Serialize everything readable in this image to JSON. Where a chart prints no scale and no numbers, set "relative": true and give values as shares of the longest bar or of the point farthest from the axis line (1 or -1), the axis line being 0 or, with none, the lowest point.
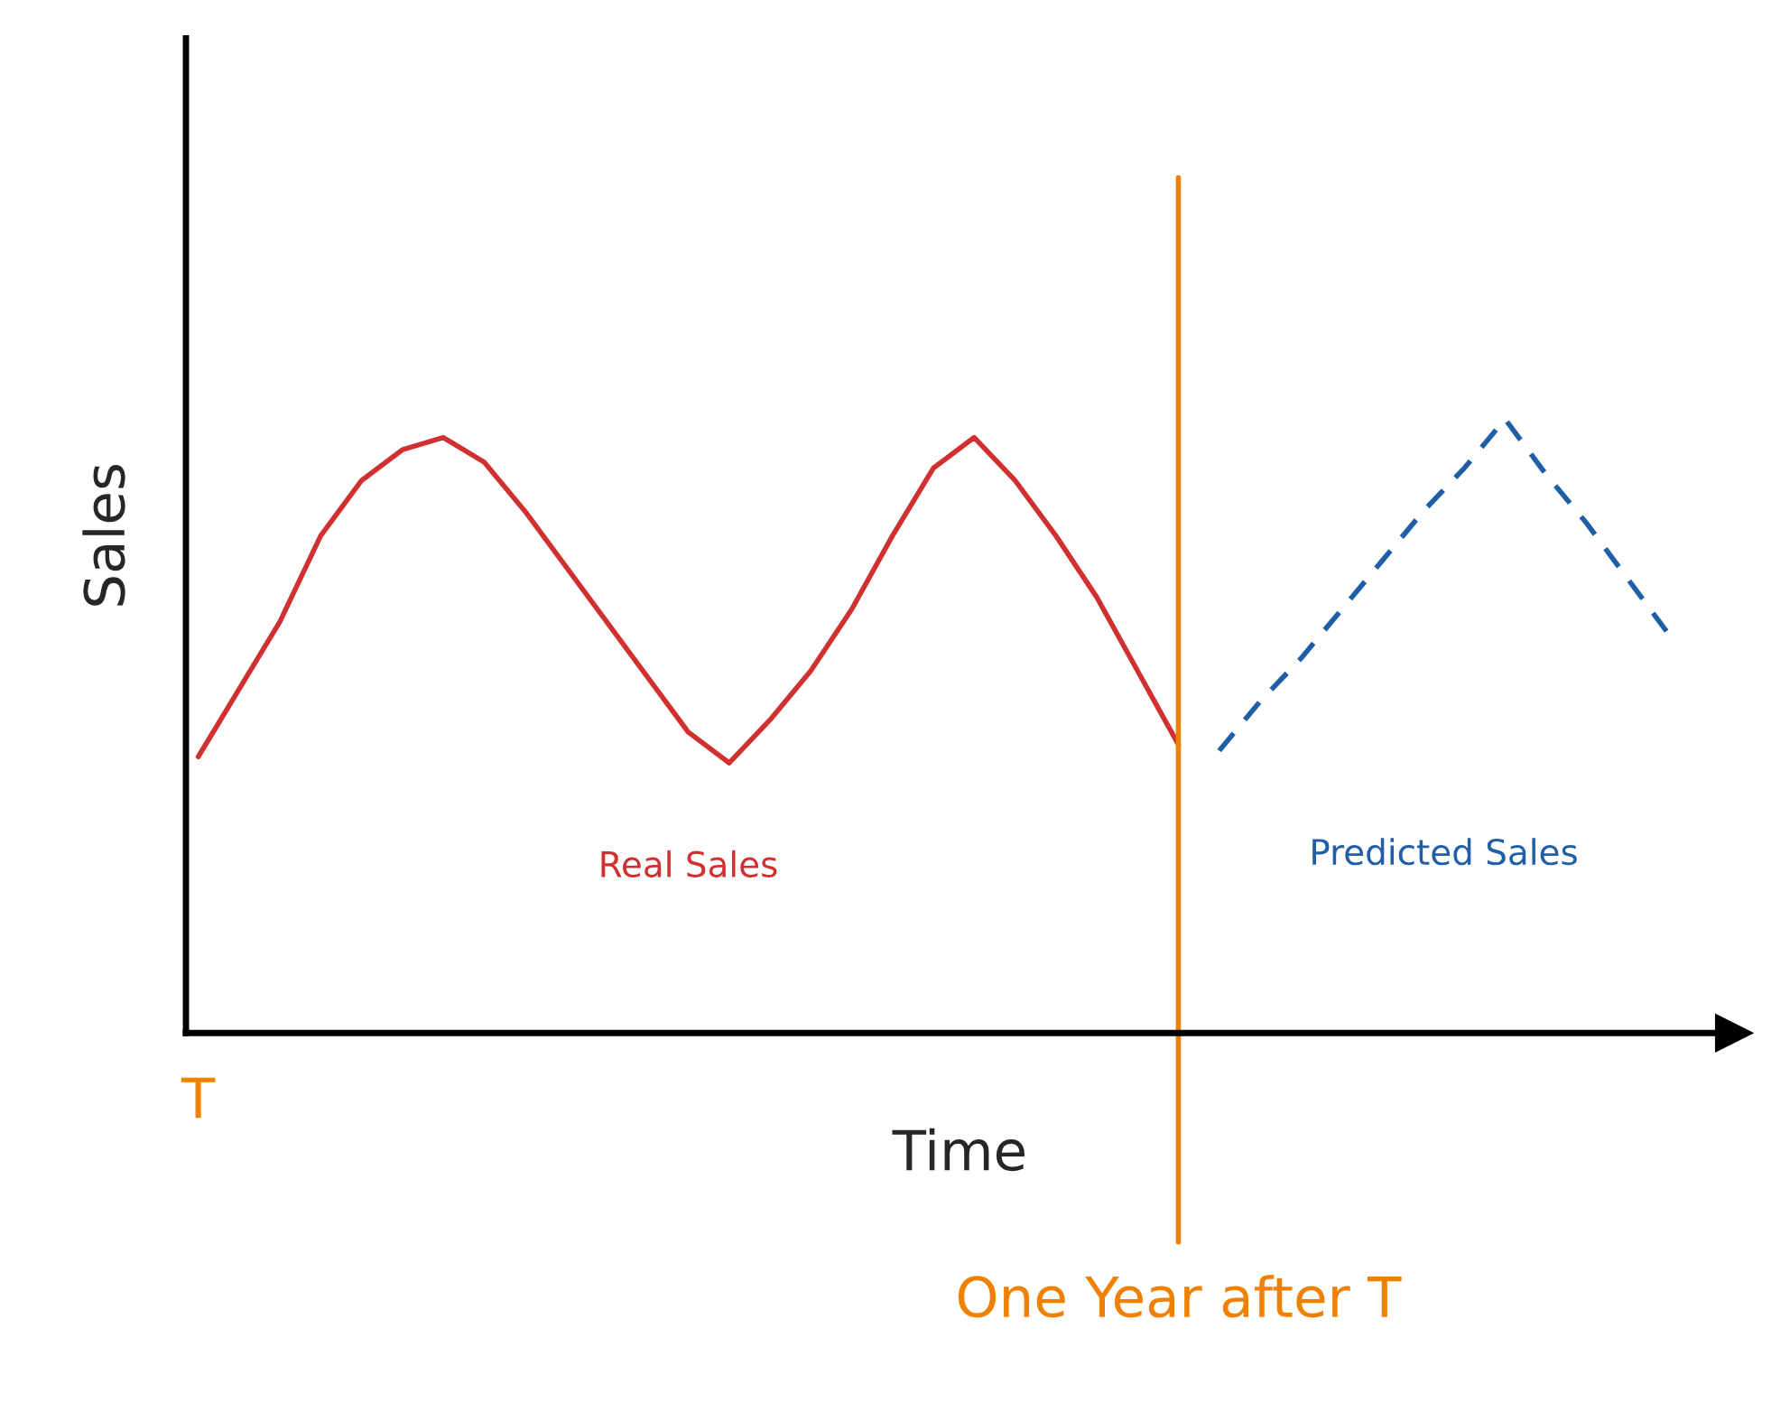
{
  "chart_data": {
    "type": "line",
    "relative": true,
    "xlabel": "Time",
    "ylabel": "Sales",
    "categories": [
      null,
      null,
      null,
      null,
      null,
      null,
      null,
      null,
      null,
      null,
      null,
      null,
      null,
      null,
      null,
      null,
      null,
      null,
      null,
      null,
      null,
      null,
      null,
      null,
      null,
      null,
      null,
      null,
      null,
      null,
      null,
      null,
      null,
      null,
      null,
      null,
      null
    ],
    "series": [
      {
        "name": "Real Sales",
        "color": "#d03030",
        "line_style": "solid",
        "values": [
          0.45,
          0.56,
          0.67,
          0.81,
          0.9,
          0.95,
          0.97,
          0.93,
          0.85,
          0.76,
          0.67,
          0.58,
          0.49,
          0.44,
          0.51,
          0.59,
          0.69,
          0.81,
          0.92,
          0.97,
          0.9,
          0.81,
          0.71,
          0.59,
          0.47,
          null,
          null,
          null,
          null,
          null,
          null,
          null,
          null,
          null,
          null,
          null,
          null
        ]
      },
      {
        "name": "Predicted Sales",
        "color": "#1f5fa8",
        "line_style": "dashed",
        "values": [
          null,
          null,
          null,
          null,
          null,
          null,
          null,
          null,
          null,
          null,
          null,
          null,
          null,
          null,
          null,
          null,
          null,
          null,
          null,
          null,
          null,
          null,
          null,
          null,
          null,
          0.46,
          0.54,
          0.61,
          0.69,
          0.77,
          0.85,
          0.92,
          1.0,
          0.91,
          0.83,
          0.74,
          0.65
        ]
      }
    ],
    "annotations": [
      "T",
      "One Year after T"
    ],
    "grid": false,
    "legend": false
  }
}
